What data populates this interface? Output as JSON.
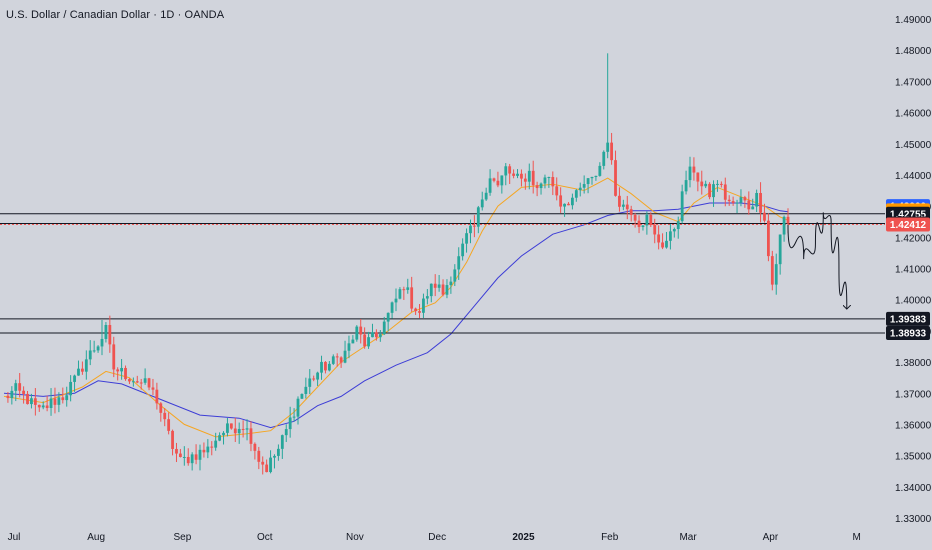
{
  "header": {
    "title": "U.S. Dollar / Canadian Dollar · 1D · OANDA"
  },
  "colors": {
    "background": "#d1d4dc",
    "up_candle": "#26a69a",
    "down_candle": "#ef5350",
    "ma_fast": "#f5a623",
    "ma_slow": "#3d3dd6",
    "horizontal_line": "#131722",
    "dashed_line": "#ef5350"
  },
  "chart_data": {
    "type": "candlestick",
    "title": "U.S. Dollar / Canadian Dollar · 1D · OANDA",
    "ylim": [
      1.325,
      1.495
    ],
    "y_ticks": [
      "1.49000",
      "1.48000",
      "1.47000",
      "1.46000",
      "1.45000",
      "1.44000",
      "1.43000",
      "1.42000",
      "1.41000",
      "1.40000",
      "1.39000",
      "1.38000",
      "1.37000",
      "1.36000",
      "1.35000",
      "1.34000",
      "1.33000"
    ],
    "x_ticks": [
      {
        "label": "Jul",
        "i": 0,
        "bold": false
      },
      {
        "label": "Aug",
        "i": 23,
        "bold": false
      },
      {
        "label": "Sep",
        "i": 45,
        "bold": false
      },
      {
        "label": "Oct",
        "i": 66,
        "bold": false
      },
      {
        "label": "Nov",
        "i": 89,
        "bold": false
      },
      {
        "label": "Dec",
        "i": 110,
        "bold": false
      },
      {
        "label": "2025",
        "i": 132,
        "bold": true
      },
      {
        "label": "Feb",
        "i": 154,
        "bold": false
      },
      {
        "label": "Mar",
        "i": 174,
        "bold": false
      },
      {
        "label": "Apr",
        "i": 195,
        "bold": false
      },
      {
        "label": "M",
        "i": 217,
        "bold": false
      }
    ],
    "x_range": [
      0,
      218
    ],
    "ohlc_anchors": [
      [
        0,
        1.3685
      ],
      [
        3,
        1.371
      ],
      [
        6,
        1.368
      ],
      [
        9,
        1.364
      ],
      [
        12,
        1.367
      ],
      [
        15,
        1.369
      ],
      [
        18,
        1.374
      ],
      [
        21,
        1.381
      ],
      [
        24,
        1.386
      ],
      [
        26,
        1.39
      ],
      [
        28,
        1.378
      ],
      [
        31,
        1.376
      ],
      [
        34,
        1.374
      ],
      [
        37,
        1.372
      ],
      [
        39,
        1.368
      ],
      [
        41,
        1.36
      ],
      [
        43,
        1.353
      ],
      [
        45,
        1.348
      ],
      [
        48,
        1.35
      ],
      [
        52,
        1.352
      ],
      [
        55,
        1.357
      ],
      [
        58,
        1.359
      ],
      [
        61,
        1.36
      ],
      [
        63,
        1.356
      ],
      [
        65,
        1.349
      ],
      [
        67,
        1.346
      ],
      [
        70,
        1.352
      ],
      [
        72,
        1.358
      ],
      [
        75,
        1.368
      ],
      [
        78,
        1.374
      ],
      [
        81,
        1.378
      ],
      [
        84,
        1.38
      ],
      [
        87,
        1.383
      ],
      [
        90,
        1.39
      ],
      [
        92,
        1.386
      ],
      [
        95,
        1.388
      ],
      [
        98,
        1.395
      ],
      [
        100,
        1.4
      ],
      [
        102,
        1.405
      ],
      [
        104,
        1.399
      ],
      [
        106,
        1.396
      ],
      [
        108,
        1.402
      ],
      [
        110,
        1.405
      ],
      [
        112,
        1.402
      ],
      [
        114,
        1.408
      ],
      [
        116,
        1.413
      ],
      [
        118,
        1.42
      ],
      [
        120,
        1.423
      ],
      [
        122,
        1.433
      ],
      [
        124,
        1.44
      ],
      [
        126,
        1.436
      ],
      [
        128,
        1.442
      ],
      [
        130,
        1.439
      ],
      [
        132,
        1.438
      ],
      [
        134,
        1.441
      ],
      [
        136,
        1.435
      ],
      [
        138,
        1.44
      ],
      [
        140,
        1.437
      ],
      [
        142,
        1.431
      ],
      [
        144,
        1.432
      ],
      [
        146,
        1.433
      ],
      [
        148,
        1.437
      ],
      [
        150,
        1.438
      ],
      [
        152,
        1.443
      ],
      [
        154,
        1.452
      ],
      [
        156,
        1.434
      ],
      [
        158,
        1.43
      ],
      [
        160,
        1.429
      ],
      [
        162,
        1.425
      ],
      [
        164,
        1.426
      ],
      [
        166,
        1.42
      ],
      [
        168,
        1.418
      ],
      [
        170,
        1.42
      ],
      [
        172,
        1.427
      ],
      [
        174,
        1.439
      ],
      [
        176,
        1.442
      ],
      [
        178,
        1.436
      ],
      [
        180,
        1.434
      ],
      [
        182,
        1.438
      ],
      [
        184,
        1.433
      ],
      [
        186,
        1.43
      ],
      [
        188,
        1.432
      ],
      [
        190,
        1.43
      ],
      [
        192,
        1.433
      ],
      [
        194,
        1.427
      ],
      [
        195,
        1.414
      ],
      [
        196,
        1.405
      ],
      [
        197,
        1.412
      ],
      [
        198,
        1.42
      ],
      [
        199,
        1.426
      ],
      [
        200,
        1.4241
      ]
    ],
    "spikes": [
      {
        "i": 25,
        "high": 1.3935
      },
      {
        "i": 154,
        "high": 1.479
      },
      {
        "i": 196,
        "low": 1.403
      }
    ],
    "ma_fast": [
      [
        0,
        1.369
      ],
      [
        10,
        1.367
      ],
      [
        20,
        1.372
      ],
      [
        26,
        1.377
      ],
      [
        32,
        1.375
      ],
      [
        40,
        1.366
      ],
      [
        46,
        1.36
      ],
      [
        54,
        1.356
      ],
      [
        62,
        1.357
      ],
      [
        68,
        1.358
      ],
      [
        74,
        1.364
      ],
      [
        80,
        1.372
      ],
      [
        86,
        1.38
      ],
      [
        92,
        1.385
      ],
      [
        98,
        1.39
      ],
      [
        104,
        1.396
      ],
      [
        110,
        1.399
      ],
      [
        114,
        1.404
      ],
      [
        118,
        1.412
      ],
      [
        122,
        1.422
      ],
      [
        126,
        1.43
      ],
      [
        132,
        1.436
      ],
      [
        140,
        1.437
      ],
      [
        148,
        1.435
      ],
      [
        154,
        1.439
      ],
      [
        160,
        1.434
      ],
      [
        166,
        1.428
      ],
      [
        172,
        1.425
      ],
      [
        176,
        1.431
      ],
      [
        182,
        1.436
      ],
      [
        188,
        1.433
      ],
      [
        194,
        1.43
      ],
      [
        198,
        1.4265
      ],
      [
        200,
        1.4255
      ]
    ],
    "ma_slow": [
      [
        0,
        1.37
      ],
      [
        10,
        1.369
      ],
      [
        18,
        1.37
      ],
      [
        24,
        1.374
      ],
      [
        30,
        1.373
      ],
      [
        40,
        1.368
      ],
      [
        50,
        1.363
      ],
      [
        60,
        1.362
      ],
      [
        68,
        1.359
      ],
      [
        74,
        1.361
      ],
      [
        80,
        1.366
      ],
      [
        86,
        1.369
      ],
      [
        92,
        1.374
      ],
      [
        100,
        1.379
      ],
      [
        108,
        1.383
      ],
      [
        114,
        1.389
      ],
      [
        120,
        1.398
      ],
      [
        126,
        1.407
      ],
      [
        132,
        1.414
      ],
      [
        140,
        1.421
      ],
      [
        148,
        1.424
      ],
      [
        154,
        1.427
      ],
      [
        160,
        1.4285
      ],
      [
        166,
        1.4285
      ],
      [
        172,
        1.429
      ],
      [
        180,
        1.431
      ],
      [
        188,
        1.431
      ],
      [
        194,
        1.43
      ],
      [
        198,
        1.4285
      ],
      [
        200,
        1.4282
      ]
    ],
    "horizontal_lines": [
      {
        "value": 1.42755,
        "style": "solid"
      },
      {
        "value": 1.42441,
        "style": "solid"
      },
      {
        "value": 1.42412,
        "style": "dashed"
      },
      {
        "value": 1.39383,
        "style": "solid"
      },
      {
        "value": 1.38933,
        "style": "solid"
      }
    ],
    "price_badges": [
      {
        "label": "1.43000",
        "value": 1.43,
        "bg": "#2962ff",
        "fg": "#ffffff"
      },
      {
        "label": "1.42862",
        "value": 1.42862,
        "bg": "#ff9800",
        "fg": "#131722"
      },
      {
        "label": "1.42755",
        "value": 1.42755,
        "bg": "#131722",
        "fg": "#ffffff"
      },
      {
        "label": "1.42441",
        "value": 1.42441,
        "bg": "#131722",
        "fg": "#ffffff"
      },
      {
        "label": "1.42412",
        "value": 1.42412,
        "bg": "#ef5350",
        "fg": "#ffffff"
      },
      {
        "label": "1.39383",
        "value": 1.39383,
        "bg": "#131722",
        "fg": "#ffffff"
      },
      {
        "label": "1.38933",
        "value": 1.38933,
        "bg": "#131722",
        "fg": "#ffffff"
      }
    ],
    "projection_path": [
      [
        200,
        1.424
      ],
      [
        204,
        1.413
      ],
      [
        207,
        1.418
      ],
      [
        209,
        1.428
      ],
      [
        211,
        1.425
      ],
      [
        213,
        1.41
      ],
      [
        215,
        1.397
      ]
    ]
  }
}
